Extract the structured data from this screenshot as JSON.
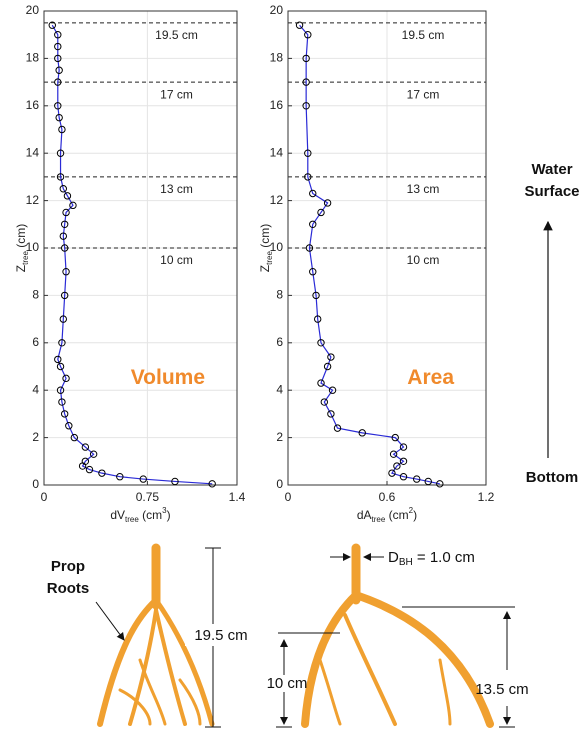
{
  "chart_data": [
    {
      "type": "line",
      "big_label": "Volume",
      "xlabel": [
        {
          "t": "dV"
        },
        {
          "t": "tree",
          "sub": true
        },
        {
          "t": " (cm"
        },
        {
          "t": "3",
          "sup": true
        },
        {
          "t": ")"
        }
      ],
      "ylabel": [
        {
          "t": "Z"
        },
        {
          "t": "tree",
          "sub": true
        },
        {
          "t": " (cm)"
        }
      ],
      "xlim": [
        0,
        1.4
      ],
      "ylim": [
        0,
        20
      ],
      "xticks": [
        0,
        0.75,
        1.4
      ],
      "yticks": [
        0,
        2,
        4,
        6,
        8,
        10,
        12,
        14,
        16,
        18,
        20
      ],
      "grid": true,
      "hlines": [
        {
          "value": 19.5,
          "label": "19.5 cm"
        },
        {
          "value": 17,
          "label": "17 cm"
        },
        {
          "value": 13,
          "label": "13 cm"
        },
        {
          "value": 10,
          "label": "10 cm"
        }
      ],
      "x": [
        1.22,
        0.95,
        0.72,
        0.55,
        0.42,
        0.33,
        0.28,
        0.3,
        0.36,
        0.3,
        0.22,
        0.18,
        0.15,
        0.13,
        0.12,
        0.16,
        0.12,
        0.1,
        0.13,
        0.14,
        0.15,
        0.16,
        0.15,
        0.14,
        0.15,
        0.16,
        0.21,
        0.17,
        0.14,
        0.12,
        0.12,
        0.13,
        0.11,
        0.1,
        0.1,
        0.11,
        0.1,
        0.1,
        0.1,
        0.06
      ],
      "series": [
        {
          "color": "#2a2ad6",
          "marker_edge": "#000000",
          "values": [
            0.05,
            0.15,
            0.25,
            0.35,
            0.5,
            0.65,
            0.8,
            1.0,
            1.3,
            1.6,
            2.0,
            2.5,
            3.0,
            3.5,
            4.0,
            4.5,
            5.0,
            5.3,
            6.0,
            7.0,
            8.0,
            9.0,
            10.0,
            10.5,
            11.0,
            11.5,
            11.8,
            12.2,
            12.5,
            13.0,
            14.0,
            15.0,
            15.5,
            16.0,
            17.0,
            17.5,
            18.0,
            18.5,
            19.0,
            19.4
          ]
        }
      ]
    },
    {
      "type": "line",
      "big_label": "Area",
      "xlabel": [
        {
          "t": "dA"
        },
        {
          "t": "tree",
          "sub": true
        },
        {
          "t": " (cm"
        },
        {
          "t": "2",
          "sup": true
        },
        {
          "t": ")"
        }
      ],
      "ylabel": [
        {
          "t": "Z"
        },
        {
          "t": "tree",
          "sub": true
        },
        {
          "t": " (cm)"
        }
      ],
      "xlim": [
        0,
        1.2
      ],
      "ylim": [
        0,
        20
      ],
      "xticks": [
        0,
        0.6,
        1.2
      ],
      "yticks": [
        0,
        2,
        4,
        6,
        8,
        10,
        12,
        14,
        16,
        18,
        20
      ],
      "grid": true,
      "hlines": [
        {
          "value": 19.5,
          "label": "19.5 cm"
        },
        {
          "value": 17,
          "label": "17 cm"
        },
        {
          "value": 13,
          "label": "13 cm"
        },
        {
          "value": 10,
          "label": "10 cm"
        }
      ],
      "x": [
        0.92,
        0.85,
        0.78,
        0.7,
        0.63,
        0.66,
        0.7,
        0.64,
        0.7,
        0.65,
        0.45,
        0.3,
        0.26,
        0.22,
        0.27,
        0.2,
        0.24,
        0.26,
        0.2,
        0.18,
        0.17,
        0.15,
        0.13,
        0.15,
        0.2,
        0.24,
        0.15,
        0.12,
        0.12,
        0.11,
        0.11,
        0.11,
        0.12,
        0.07
      ],
      "series": [
        {
          "color": "#2a2ad6",
          "marker_edge": "#000000",
          "values": [
            0.05,
            0.15,
            0.25,
            0.35,
            0.5,
            0.8,
            1.0,
            1.3,
            1.6,
            2.0,
            2.2,
            2.4,
            3.0,
            3.5,
            4.0,
            4.3,
            5.0,
            5.4,
            6.0,
            7.0,
            8.0,
            9.0,
            10.0,
            11.0,
            11.5,
            11.9,
            12.3,
            13.0,
            14.0,
            16.0,
            17.0,
            18.0,
            19.0,
            19.4
          ]
        }
      ]
    }
  ],
  "side": {
    "top": [
      "Water",
      "Surface"
    ],
    "bottom": "Bottom"
  },
  "illustration": {
    "prop_roots": [
      "Prop",
      "Roots"
    ],
    "height_left": "19.5 cm",
    "dbh": [
      "D",
      "BH",
      " = 1.0 cm"
    ],
    "height_low": "10 cm",
    "height_high": "13.5 cm"
  }
}
